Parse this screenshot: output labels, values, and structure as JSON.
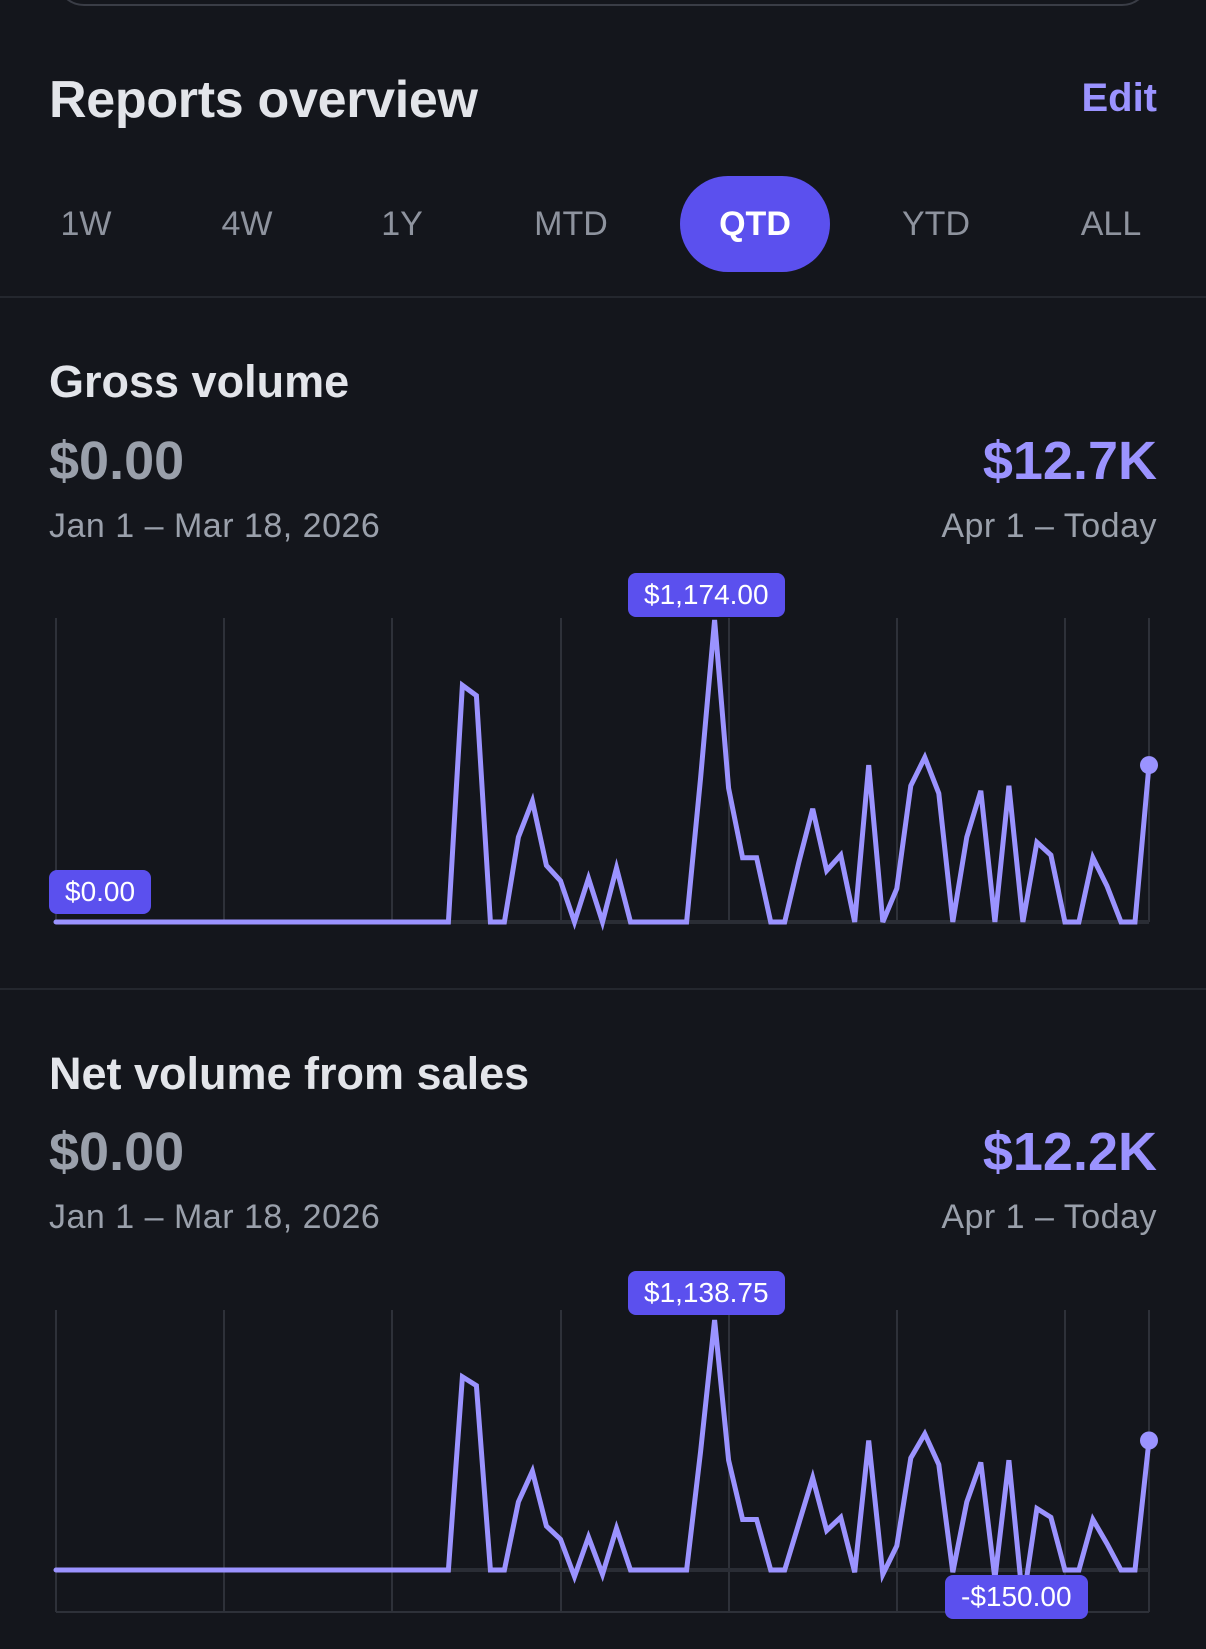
{
  "header": {
    "title": "Reports overview",
    "edit_label": "Edit"
  },
  "tabs": [
    {
      "label": "1W",
      "active": false
    },
    {
      "label": "4W",
      "active": false
    },
    {
      "label": "1Y",
      "active": false
    },
    {
      "label": "MTD",
      "active": false
    },
    {
      "label": "QTD",
      "active": true
    },
    {
      "label": "YTD",
      "active": false
    },
    {
      "label": "ALL",
      "active": false
    }
  ],
  "colors": {
    "accent": "#5b50ee",
    "line": "#9b93ff",
    "background": "#14161c",
    "grid": "#2e3139"
  },
  "gross_volume": {
    "title": "Gross volume",
    "previous_value": "$0.00",
    "current_value": "$12.7K",
    "previous_range": "Jan 1 – Mar 18, 2026",
    "current_range": "Apr 1 – Today",
    "max_label": "$1,174.00",
    "baseline_label": "$0.00"
  },
  "net_volume": {
    "title": "Net volume from sales",
    "previous_value": "$0.00",
    "current_value": "$12.2K",
    "previous_range": "Jan 1 – Mar 18, 2026",
    "current_range": "Apr 1 – Today",
    "max_label": "$1,138.75",
    "min_label": "-$150.00"
  },
  "chart_data": [
    {
      "type": "line",
      "title": "Gross volume",
      "series": [
        {
          "values": [
            0,
            0,
            0,
            0,
            0,
            0,
            0,
            0,
            0,
            0,
            0,
            0,
            0,
            0,
            0,
            0,
            0,
            0,
            0,
            0,
            0,
            0,
            0,
            0,
            0,
            0,
            0,
            0,
            0,
            920,
            880,
            0,
            0,
            330,
            470,
            220,
            160,
            0,
            170,
            0,
            210,
            0,
            0,
            0,
            0,
            0,
            560,
            1174,
            520,
            250,
            250,
            0,
            0,
            230,
            440,
            200,
            260,
            0,
            610,
            0,
            130,
            530,
            640,
            500,
            0,
            330,
            510,
            0,
            530,
            0,
            310,
            260,
            0,
            0,
            250,
            140,
            0,
            0,
            610
          ]
        }
      ],
      "ylim": [
        0,
        1174
      ],
      "annotations": [
        "$1,174.00",
        "$0.00"
      ]
    },
    {
      "type": "line",
      "title": "Net volume from sales",
      "series": [
        {
          "values": [
            0,
            0,
            0,
            0,
            0,
            0,
            0,
            0,
            0,
            0,
            0,
            0,
            0,
            0,
            0,
            0,
            0,
            0,
            0,
            0,
            0,
            0,
            0,
            0,
            0,
            0,
            0,
            0,
            0,
            880,
            840,
            0,
            0,
            310,
            450,
            200,
            140,
            -30,
            150,
            -20,
            190,
            0,
            0,
            0,
            0,
            0,
            540,
            1138.75,
            500,
            230,
            230,
            0,
            0,
            210,
            420,
            180,
            240,
            -10,
            590,
            -20,
            110,
            510,
            620,
            480,
            -10,
            310,
            490,
            -40,
            500,
            -150,
            280,
            240,
            0,
            0,
            230,
            120,
            0,
            0,
            590
          ]
        }
      ],
      "ylim": [
        -150,
        1138.75
      ],
      "annotations": [
        "$1,138.75",
        "-$150.00"
      ]
    }
  ]
}
